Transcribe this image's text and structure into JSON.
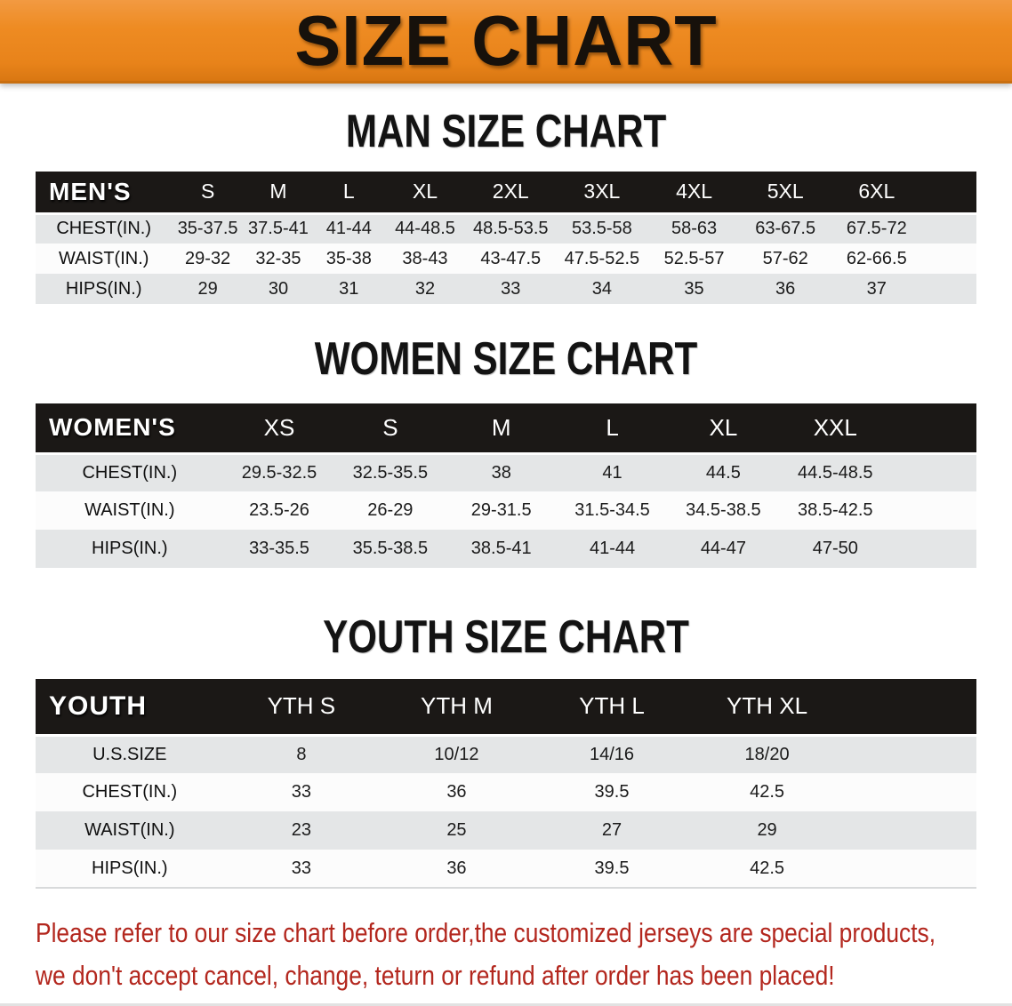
{
  "banner": {
    "title": "SIZE CHART",
    "bg_color": "#ee8b22",
    "text_color": "#17110b"
  },
  "sections": [
    {
      "title": "MAN SIZE CHART",
      "table": {
        "header_label": "MEN'S",
        "columns": [
          "S",
          "M",
          "L",
          "XL",
          "2XL",
          "3XL",
          "4XL",
          "5XL",
          "6XL"
        ],
        "rows": [
          {
            "label": "CHEST(IN.)",
            "values": [
              "35-37.5",
              "37.5-41",
              "41-44",
              "44-48.5",
              "48.5-53.5",
              "53.5-58",
              "58-63",
              "63-67.5",
              "67.5-72"
            ]
          },
          {
            "label": "WAIST(IN.)",
            "values": [
              "29-32",
              "32-35",
              "35-38",
              "38-43",
              "43-47.5",
              "47.5-52.5",
              "52.5-57",
              "57-62",
              "62-66.5"
            ]
          },
          {
            "label": "HIPS(IN.)",
            "values": [
              "29",
              "30",
              "31",
              "32",
              "33",
              "34",
              "35",
              "36",
              "37"
            ]
          }
        ]
      }
    },
    {
      "title": "WOMEN SIZE CHART",
      "table": {
        "header_label": "WOMEN'S",
        "columns": [
          "XS",
          "S",
          "M",
          "L",
          "XL",
          "XXL"
        ],
        "rows": [
          {
            "label": "CHEST(IN.)",
            "values": [
              "29.5-32.5",
              "32.5-35.5",
              "38",
              "41",
              "44.5",
              "44.5-48.5"
            ]
          },
          {
            "label": "WAIST(IN.)",
            "values": [
              "23.5-26",
              "26-29",
              "29-31.5",
              "31.5-34.5",
              "34.5-38.5",
              "38.5-42.5"
            ]
          },
          {
            "label": "HIPS(IN.)",
            "values": [
              "33-35.5",
              "35.5-38.5",
              "38.5-41",
              "41-44",
              "44-47",
              "47-50"
            ]
          }
        ]
      }
    },
    {
      "title": "YOUTH SIZE CHART",
      "table": {
        "header_label": "YOUTH",
        "columns": [
          "YTH S",
          "YTH M",
          "YTH L",
          "YTH XL"
        ],
        "rows": [
          {
            "label": "U.S.SIZE",
            "values": [
              "8",
              "10/12",
              "14/16",
              "18/20"
            ]
          },
          {
            "label": "CHEST(IN.)",
            "values": [
              "33",
              "36",
              "39.5",
              "42.5"
            ]
          },
          {
            "label": "WAIST(IN.)",
            "values": [
              "23",
              "25",
              "27",
              "29"
            ]
          },
          {
            "label": "HIPS(IN.)",
            "values": [
              "33",
              "36",
              "39.5",
              "42.5"
            ]
          }
        ]
      }
    }
  ],
  "disclaimer": {
    "line1": "Please refer to our size chart before order,the customized jerseys are special products,",
    "line2": "we don't accept cancel, change, teturn or refund after order has been placed!",
    "color": "#b3271e"
  },
  "colors": {
    "banner_orange": "#ee8b22",
    "header_black": "#1b1816",
    "row_gray": "#e4e6e7",
    "row_white": "#fcfcfc",
    "disclaimer_red": "#b3271e"
  }
}
